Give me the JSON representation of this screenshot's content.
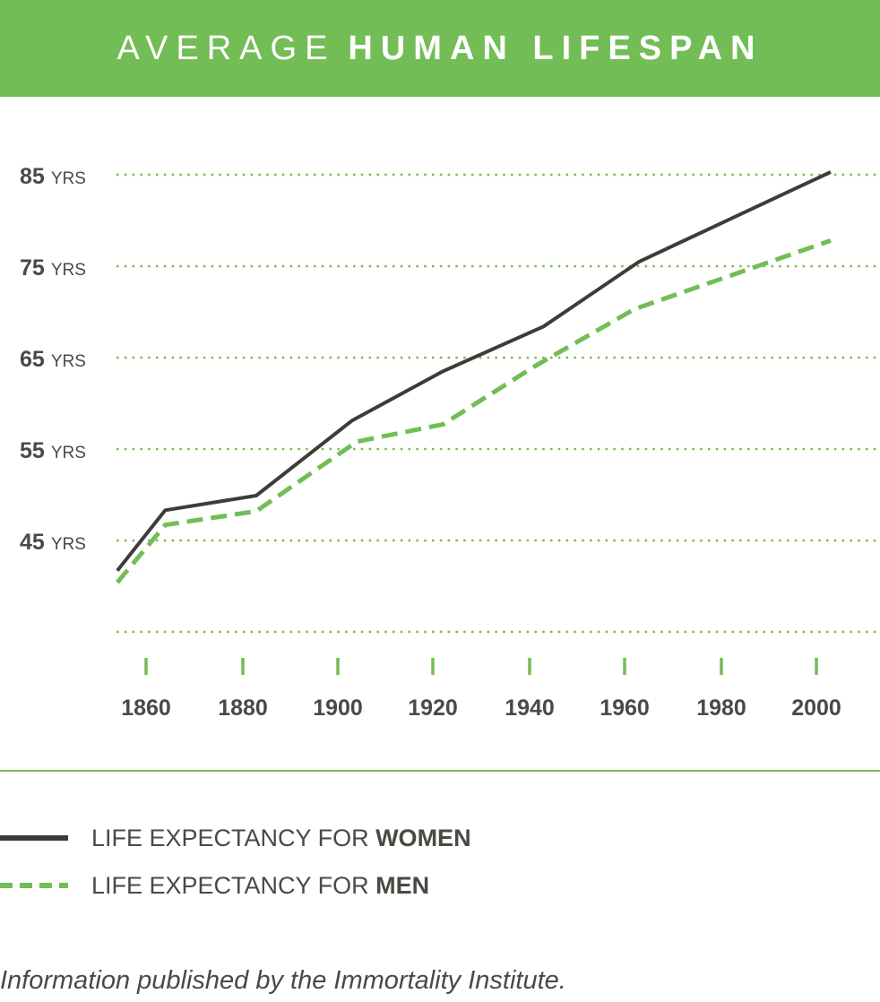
{
  "header": {
    "title_light": "AVERAGE",
    "title_bold": "HUMAN LIFESPAN",
    "background_color": "#72bd55"
  },
  "y_axis": {
    "labels": [
      {
        "value": "85",
        "unit": "YRS"
      },
      {
        "value": "75",
        "unit": "YRS"
      },
      {
        "value": "65",
        "unit": "YRS"
      },
      {
        "value": "55",
        "unit": "YRS"
      },
      {
        "value": "45",
        "unit": "YRS"
      }
    ]
  },
  "x_axis": {
    "labels": [
      "1860",
      "1880",
      "1900",
      "1920",
      "1940",
      "1960",
      "1980",
      "2000"
    ]
  },
  "legend": {
    "women": {
      "prefix": "LIFE EXPECTANCY FOR ",
      "bold": "WOMEN",
      "color": "#3d3d38",
      "style": "solid"
    },
    "men": {
      "prefix": "LIFE EXPECTANCY FOR ",
      "bold": "MEN",
      "color": "#72bd55",
      "style": "dashed"
    }
  },
  "source": "Information published by the Immortality Institute.",
  "chart_data": {
    "type": "line",
    "title": "AVERAGE HUMAN LIFESPAN",
    "xlabel": "",
    "ylabel": "Years",
    "x_ticks": [
      1860,
      1880,
      1900,
      1920,
      1940,
      1960,
      1980,
      2000
    ],
    "y_ticks": [
      45,
      55,
      65,
      75,
      85
    ],
    "ylim": [
      35,
      85
    ],
    "xlim": [
      1854,
      2004
    ],
    "grid": "horizontal dotted",
    "legend_position": "bottom",
    "series": [
      {
        "name": "LIFE EXPECTANCY FOR WOMEN",
        "style": "solid",
        "color": "#3d3d38",
        "x": [
          1854,
          1864,
          1883,
          1903,
          1922,
          1943,
          1963,
          2003
        ],
        "values": [
          41.7,
          48.3,
          49.9,
          58.1,
          63.5,
          68.4,
          75.5,
          85.3
        ]
      },
      {
        "name": "LIFE EXPECTANCY FOR MEN",
        "style": "dashed",
        "color": "#72bd55",
        "x": [
          1854,
          1864,
          1883,
          1904,
          1922,
          1941,
          1962,
          2003
        ],
        "values": [
          40.4,
          46.7,
          48.2,
          55.8,
          57.7,
          64.0,
          70.3,
          77.8
        ]
      }
    ],
    "annotations": [
      "Information published by the Immortality Institute."
    ]
  }
}
